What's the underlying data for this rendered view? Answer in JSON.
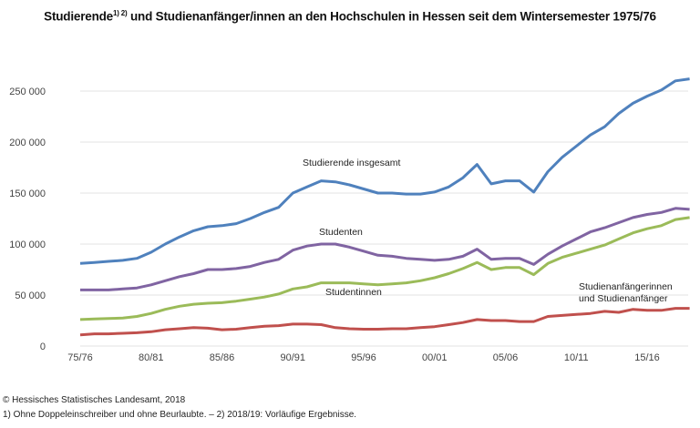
{
  "chart_data": {
    "type": "line",
    "title": "Studierende",
    "title_sup": "1) 2)",
    "title_rest": " und Studienanfänger/innen an den Hochschulen in Hessen seit dem Wintersemester 1975/76",
    "xlabel": "",
    "ylabel": "",
    "ylim": [
      0,
      250000
    ],
    "yticks": [
      0,
      50000,
      100000,
      150000,
      200000,
      250000
    ],
    "ytick_labels": [
      "0",
      "50 000",
      "100 000",
      "150 000",
      "200 000",
      "250 000"
    ],
    "xtick_labels": [
      "75/76",
      "80/81",
      "85/86",
      "90/91",
      "95/96",
      "00/01",
      "05/06",
      "10/11",
      "15/16"
    ],
    "x_start_year": 1975,
    "x_count": 44,
    "grid": true,
    "series": [
      {
        "name": "Studierende insgesamt",
        "color": "#4f81bd",
        "values": [
          81000,
          82000,
          83000,
          84000,
          86000,
          92000,
          100000,
          107000,
          113000,
          117000,
          118000,
          120000,
          125000,
          131000,
          136000,
          150000,
          156000,
          162000,
          161000,
          158000,
          154000,
          150000,
          150000,
          149000,
          149000,
          151000,
          156000,
          165000,
          178000,
          159000,
          162000,
          162000,
          151000,
          171000,
          185000,
          196000,
          207000,
          215000,
          228000,
          238000,
          245000,
          251000,
          260000,
          262000
        ]
      },
      {
        "name": "Studenten",
        "color": "#8064a2",
        "values": [
          55000,
          55000,
          55000,
          56000,
          57000,
          60000,
          64000,
          68000,
          71000,
          75000,
          75000,
          76000,
          78000,
          82000,
          85000,
          94000,
          98000,
          100000,
          100000,
          97000,
          93000,
          89000,
          88000,
          86000,
          85000,
          84000,
          85000,
          88000,
          95000,
          85000,
          86000,
          86000,
          80000,
          90000,
          98000,
          105000,
          112000,
          116000,
          121000,
          126000,
          129000,
          131000,
          135000,
          134000
        ]
      },
      {
        "name": "Studentinnen",
        "color": "#9bbb59",
        "values": [
          26000,
          26500,
          27000,
          27500,
          29000,
          32000,
          36000,
          39000,
          41000,
          42000,
          42500,
          44000,
          46000,
          48000,
          51000,
          56000,
          58000,
          62000,
          62000,
          62000,
          61000,
          60000,
          61000,
          62000,
          64000,
          67000,
          71000,
          76000,
          82000,
          75000,
          77000,
          77000,
          70000,
          81000,
          87000,
          91000,
          95000,
          99000,
          105000,
          111000,
          115000,
          118000,
          124000,
          126000
        ]
      },
      {
        "name": "Studienanfängerinnen und Studienanfänger",
        "name_line1": "Studienanfängerinnen",
        "name_line2": "und Studienanfänger",
        "color": "#c0504d",
        "values": [
          11000,
          12000,
          12000,
          12500,
          13000,
          14000,
          16000,
          17000,
          18000,
          17500,
          16000,
          16500,
          18000,
          19500,
          20000,
          21500,
          21500,
          21000,
          18000,
          17000,
          16500,
          16500,
          17000,
          17000,
          18000,
          19000,
          21000,
          23000,
          26000,
          25000,
          25000,
          24000,
          24000,
          29000,
          30000,
          31000,
          32000,
          34000,
          33000,
          36000,
          35000,
          35000,
          37000,
          37000
        ]
      }
    ]
  },
  "footer": {
    "source": "© Hessisches Statistisches Landesamt, 2018",
    "note": "1) Ohne Doppeleinschreiber und ohne Beurlaubte. – 2) 2018/19: Vorläufige Ergebnisse."
  }
}
